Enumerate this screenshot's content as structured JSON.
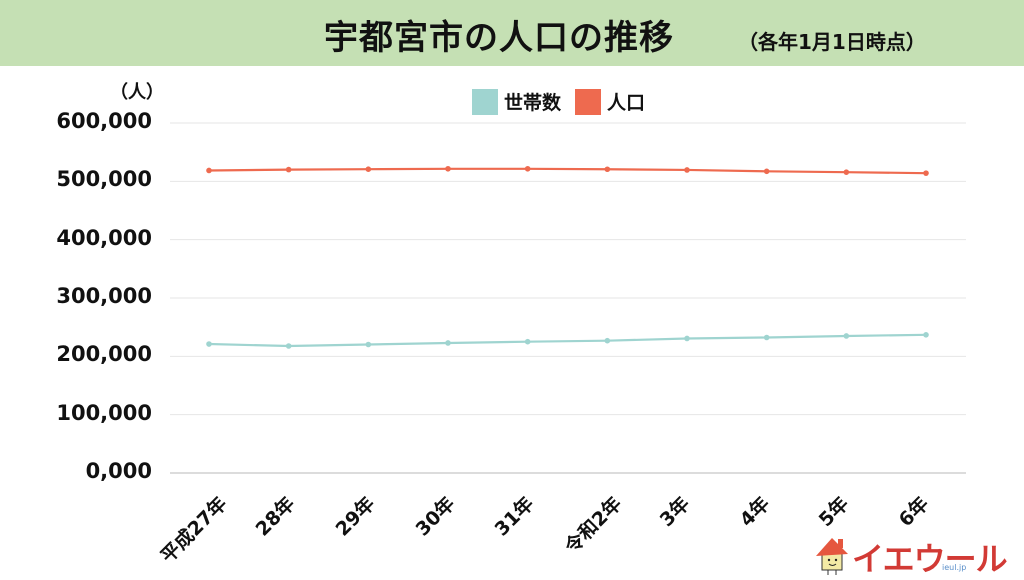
{
  "header": {
    "title": "宇都宮市の人口の推移",
    "subtitle": "（各年1月1日時点）"
  },
  "unit_label": "（人）",
  "legend": [
    {
      "label": "世帯数",
      "color": "#9fd4d0"
    },
    {
      "label": "人口",
      "color": "#ee6a4f"
    }
  ],
  "logo": {
    "text": "イエウール",
    "sub": "ieul.jp"
  },
  "chart_data": {
    "type": "line",
    "title": "宇都宮市の人口の推移",
    "subtitle": "（各年1月1日時点）",
    "xlabel": "",
    "ylabel": "（人）",
    "categories": [
      "平成27年",
      "28年",
      "29年",
      "30年",
      "31年",
      "令和2年",
      "3年",
      "4年",
      "5年",
      "6年"
    ],
    "series": [
      {
        "name": "世帯数",
        "color": "#9fd4d0",
        "values": [
          221100,
          217700,
          220300,
          222900,
          225100,
          226800,
          230600,
          232300,
          234900,
          236900
        ]
      },
      {
        "name": "人口",
        "color": "#ee6a4f",
        "values": [
          518600,
          520100,
          520800,
          521500,
          521500,
          520700,
          519500,
          517200,
          515700,
          514000
        ]
      }
    ],
    "ylim": [
      0,
      600000
    ],
    "yticks": [
      0,
      100000,
      200000,
      300000,
      400000,
      500000,
      600000
    ],
    "ytick_labels": [
      "0,000",
      "100,000",
      "200,000",
      "300,000",
      "400,000",
      "500,000",
      "600,000"
    ],
    "grid": true,
    "legend_position": "top"
  }
}
